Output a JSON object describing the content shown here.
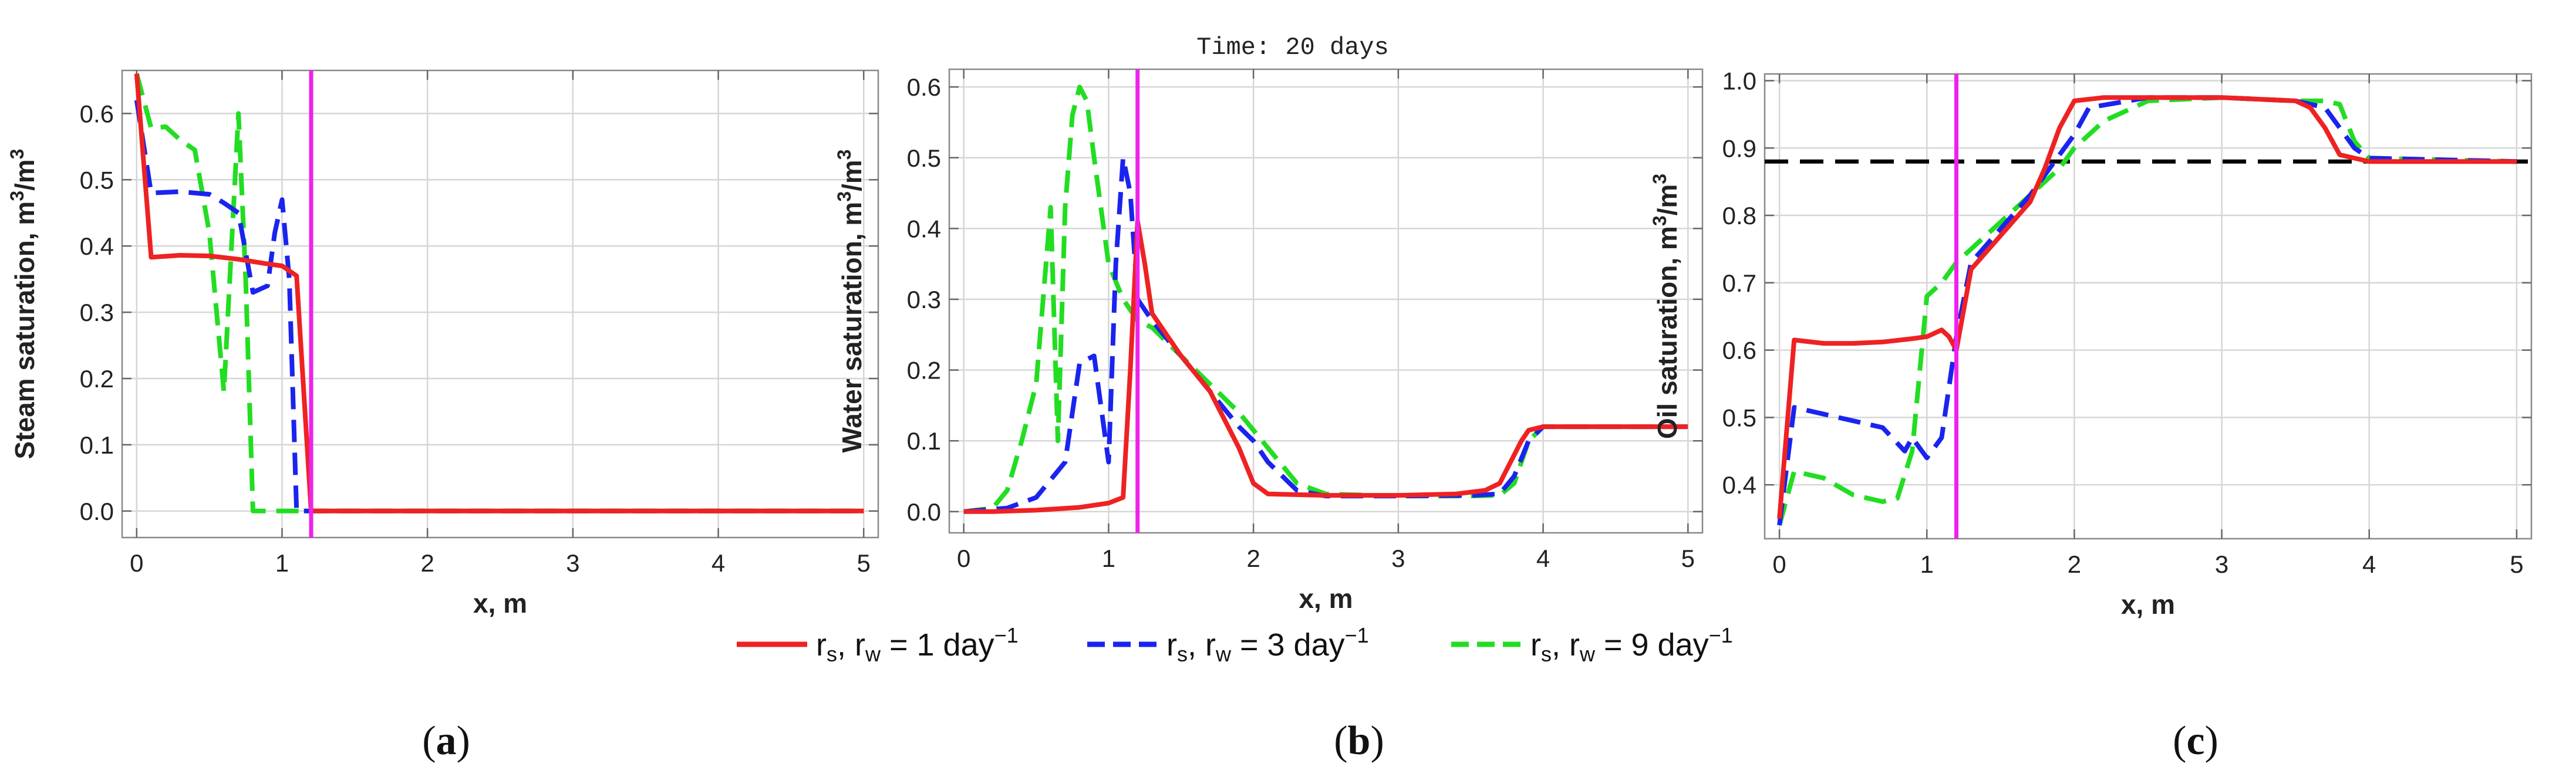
{
  "figure": {
    "time_label": "Time: 20 days",
    "panel_labels": {
      "a": {
        "open": "(",
        "letter": "a",
        "close": ")"
      },
      "b": {
        "open": "(",
        "letter": "b",
        "close": ")"
      },
      "c": {
        "open": "(",
        "letter": "c",
        "close": ")"
      }
    },
    "legend": [
      {
        "key": "r1",
        "prefix": "r",
        "sub1": "s",
        "mid": ", r",
        "sub2": "w",
        "eq": " = 1 day",
        "sup": "−1",
        "color": "#ee2222",
        "dash": "solid"
      },
      {
        "key": "r3",
        "prefix": "r",
        "sub1": "s",
        "mid": ", r",
        "sub2": "w",
        "eq": " = 3 day",
        "sup": "−1",
        "color": "#1a24ee",
        "dash": "dashed"
      },
      {
        "key": "r9",
        "prefix": "r",
        "sub1": "s",
        "mid": ", r",
        "sub2": "w",
        "eq": " = 9 day",
        "sup": "−1",
        "color": "#22dd22",
        "dash": "dashed"
      }
    ]
  },
  "chart_data": [
    {
      "id": "a",
      "type": "line",
      "ylabel": {
        "main": "Steam saturation, m",
        "sup1": "3",
        "mid": "/m",
        "sup2": "3"
      },
      "xlabel": "x, m",
      "xlim": [
        -0.1,
        5.1
      ],
      "ylim": [
        -0.04,
        0.665
      ],
      "xticks": [
        0,
        1,
        2,
        3,
        4,
        5
      ],
      "xtick_labels": [
        "0",
        "1",
        "2",
        "3",
        "4",
        "5"
      ],
      "yticks": [
        0.0,
        0.1,
        0.2,
        0.3,
        0.4,
        0.5,
        0.6
      ],
      "ytick_labels": [
        "0.0",
        "0.1",
        "0.2",
        "0.3",
        "0.4",
        "0.5",
        "0.6"
      ],
      "front_x": 1.2,
      "front_color": "#ee22ee",
      "hline": null,
      "series": [
        {
          "name": "r1",
          "color": "#ee2222",
          "dash": "solid",
          "x": [
            0,
            0.1,
            0.3,
            0.5,
            0.7,
            0.9,
            1.0,
            1.1,
            1.2,
            5.0
          ],
          "y": [
            0.66,
            0.383,
            0.386,
            0.385,
            0.38,
            0.373,
            0.37,
            0.355,
            0.0,
            0.0
          ]
        },
        {
          "name": "r3",
          "color": "#1a24ee",
          "dash": "dashed",
          "x": [
            0,
            0.1,
            0.3,
            0.5,
            0.6,
            0.7,
            0.8,
            0.9,
            0.95,
            1.0,
            1.05,
            1.1,
            1.15,
            5.0
          ],
          "y": [
            0.62,
            0.48,
            0.482,
            0.478,
            0.465,
            0.45,
            0.33,
            0.34,
            0.42,
            0.47,
            0.35,
            0.0,
            0.0,
            0.0
          ]
        },
        {
          "name": "r9",
          "color": "#22dd22",
          "dash": "dashed",
          "x": [
            0,
            0.1,
            0.2,
            0.3,
            0.4,
            0.5,
            0.6,
            0.7,
            0.75,
            0.8,
            0.85,
            5.0
          ],
          "y": [
            0.66,
            0.578,
            0.58,
            0.56,
            0.545,
            0.42,
            0.18,
            0.6,
            0.35,
            0.0,
            0.0,
            0.0
          ]
        }
      ]
    },
    {
      "id": "b",
      "type": "line",
      "ylabel": {
        "main": "Water saturation, m",
        "sup1": "3",
        "mid": "/m",
        "sup2": "3"
      },
      "xlabel": "x, m",
      "xlim": [
        -0.1,
        5.1
      ],
      "ylim": [
        -0.03,
        0.625
      ],
      "xticks": [
        0,
        1,
        2,
        3,
        4,
        5
      ],
      "xtick_labels": [
        "0",
        "1",
        "2",
        "3",
        "4",
        "5"
      ],
      "yticks": [
        0.0,
        0.1,
        0.2,
        0.3,
        0.4,
        0.5,
        0.6
      ],
      "ytick_labels": [
        "0.0",
        "0.1",
        "0.2",
        "0.3",
        "0.4",
        "0.5",
        "0.6"
      ],
      "front_x": 1.2,
      "front_color": "#ee22ee",
      "hline": null,
      "series": [
        {
          "name": "r1",
          "color": "#ee2222",
          "dash": "solid",
          "x": [
            0,
            0.2,
            0.5,
            0.8,
            1.0,
            1.1,
            1.15,
            1.2,
            1.25,
            1.3,
            1.5,
            1.7,
            1.8,
            1.9,
            2.0,
            2.1,
            2.5,
            3.0,
            3.4,
            3.6,
            3.7,
            3.8,
            3.85,
            3.9,
            4.0,
            4.5,
            5.0
          ],
          "y": [
            0.0,
            0.0,
            0.002,
            0.006,
            0.012,
            0.02,
            0.2,
            0.41,
            0.35,
            0.28,
            0.22,
            0.17,
            0.13,
            0.09,
            0.04,
            0.025,
            0.023,
            0.023,
            0.025,
            0.03,
            0.04,
            0.08,
            0.1,
            0.115,
            0.12,
            0.12,
            0.12
          ]
        },
        {
          "name": "r3",
          "color": "#1a24ee",
          "dash": "dashed",
          "x": [
            0,
            0.3,
            0.5,
            0.7,
            0.8,
            0.9,
            1.0,
            1.05,
            1.1,
            1.15,
            1.2,
            1.3,
            1.5,
            1.7,
            1.9,
            2.0,
            2.1,
            2.3,
            2.5,
            3.0,
            3.5,
            3.7,
            3.8,
            3.9,
            4.0,
            5.0
          ],
          "y": [
            0.0,
            0.005,
            0.02,
            0.07,
            0.21,
            0.22,
            0.07,
            0.35,
            0.5,
            0.45,
            0.3,
            0.27,
            0.22,
            0.17,
            0.12,
            0.1,
            0.07,
            0.03,
            0.022,
            0.022,
            0.023,
            0.025,
            0.05,
            0.1,
            0.12,
            0.12
          ]
        },
        {
          "name": "r9",
          "color": "#22dd22",
          "dash": "dashed",
          "x": [
            0,
            0.2,
            0.3,
            0.4,
            0.5,
            0.6,
            0.65,
            0.7,
            0.75,
            0.8,
            0.85,
            0.9,
            1.0,
            1.1,
            1.2,
            1.3,
            1.5,
            1.7,
            1.9,
            2.1,
            2.3,
            2.5,
            3.0,
            3.5,
            3.7,
            3.8,
            3.9,
            4.0,
            5.0
          ],
          "y": [
            0.0,
            0.005,
            0.03,
            0.1,
            0.18,
            0.43,
            0.1,
            0.43,
            0.56,
            0.6,
            0.58,
            0.5,
            0.35,
            0.3,
            0.27,
            0.26,
            0.22,
            0.18,
            0.14,
            0.09,
            0.04,
            0.025,
            0.022,
            0.022,
            0.023,
            0.04,
            0.1,
            0.12,
            0.12
          ]
        }
      ]
    },
    {
      "id": "c",
      "type": "line",
      "ylabel": {
        "main": "Oil saturation, m",
        "sup1": "3",
        "mid": "/m",
        "sup2": "3"
      },
      "xlabel": "x, m",
      "xlim": [
        -0.1,
        5.1
      ],
      "ylim": [
        0.32,
        1.01
      ],
      "xticks": [
        0,
        1,
        2,
        3,
        4,
        5
      ],
      "xtick_labels": [
        "0",
        "1",
        "2",
        "3",
        "4",
        "5"
      ],
      "yticks": [
        0.4,
        0.5,
        0.6,
        0.7,
        0.8,
        0.9,
        1.0
      ],
      "ytick_labels": [
        "0.4",
        "0.5",
        "0.6",
        "0.7",
        "0.8",
        "0.9",
        "1.0"
      ],
      "front_x": 1.2,
      "front_color": "#ee22ee",
      "hline": {
        "y": 0.88,
        "color": "#000000",
        "dash": "dashed"
      },
      "series": [
        {
          "name": "r1",
          "color": "#ee2222",
          "dash": "solid",
          "x": [
            0,
            0.1,
            0.3,
            0.5,
            0.7,
            0.9,
            1.0,
            1.1,
            1.15,
            1.2,
            1.3,
            1.5,
            1.7,
            1.8,
            1.9,
            2.0,
            2.2,
            3.0,
            3.5,
            3.6,
            3.7,
            3.8,
            3.9,
            4.0,
            5.0
          ],
          "y": [
            0.35,
            0.615,
            0.61,
            0.61,
            0.612,
            0.617,
            0.62,
            0.63,
            0.62,
            0.6,
            0.72,
            0.77,
            0.82,
            0.87,
            0.93,
            0.97,
            0.975,
            0.975,
            0.97,
            0.96,
            0.93,
            0.89,
            0.885,
            0.88,
            0.88
          ]
        },
        {
          "name": "r3",
          "color": "#1a24ee",
          "dash": "dashed",
          "x": [
            0,
            0.1,
            0.3,
            0.5,
            0.7,
            0.85,
            0.9,
            1.0,
            1.1,
            1.2,
            1.3,
            1.5,
            1.7,
            1.9,
            2.0,
            2.1,
            2.5,
            3.0,
            3.5,
            3.7,
            3.8,
            3.9,
            4.0,
            5.0
          ],
          "y": [
            0.34,
            0.515,
            0.505,
            0.495,
            0.485,
            0.45,
            0.47,
            0.44,
            0.47,
            0.62,
            0.73,
            0.78,
            0.83,
            0.89,
            0.92,
            0.96,
            0.975,
            0.975,
            0.97,
            0.96,
            0.93,
            0.9,
            0.885,
            0.88
          ]
        },
        {
          "name": "r9",
          "color": "#22dd22",
          "dash": "dashed",
          "x": [
            0,
            0.1,
            0.3,
            0.5,
            0.6,
            0.7,
            0.8,
            0.9,
            1.0,
            1.1,
            1.2,
            1.3,
            1.5,
            1.7,
            1.9,
            2.0,
            2.2,
            2.5,
            3.0,
            3.5,
            3.7,
            3.8,
            3.9,
            4.0,
            5.0
          ],
          "y": [
            0.34,
            0.42,
            0.41,
            0.385,
            0.38,
            0.375,
            0.38,
            0.45,
            0.68,
            0.7,
            0.73,
            0.75,
            0.79,
            0.83,
            0.87,
            0.9,
            0.94,
            0.97,
            0.975,
            0.97,
            0.97,
            0.965,
            0.91,
            0.885,
            0.88
          ]
        }
      ]
    }
  ]
}
